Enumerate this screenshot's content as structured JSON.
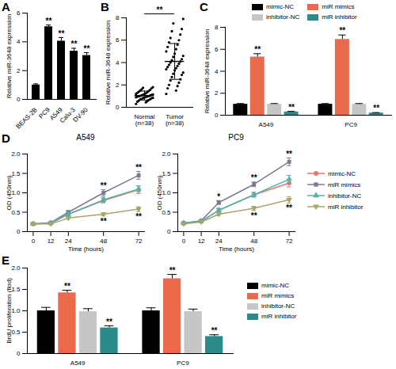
{
  "chart_data": [
    {
      "type": "bar",
      "title": "A",
      "ylabel": "Relative miR-3648 expression",
      "categories": [
        "BEAS-2B",
        "PC9",
        "A549",
        "Calu-3",
        "DV-90"
      ],
      "values": [
        1,
        5.05,
        4.05,
        3.35,
        3.05
      ],
      "errors": [
        0.08,
        0.12,
        0.25,
        0.2,
        0.2
      ],
      "significance": [
        null,
        "**",
        "**",
        "**",
        "**"
      ],
      "color": "#000000",
      "ylim": [
        0,
        6
      ],
      "yticks": [
        0,
        2,
        4,
        6
      ]
    },
    {
      "type": "scatter",
      "title": "B",
      "ylabel": "Relative miR-3648 expression",
      "categories": [
        "Normal\n(n=38)",
        "Tumor\n(n=38)"
      ],
      "groups": [
        [
          0.3,
          0.45,
          0.5,
          0.55,
          0.6,
          0.65,
          0.7,
          0.72,
          0.75,
          0.8,
          0.82,
          0.85,
          0.88,
          0.9,
          0.92,
          0.95,
          0.97,
          1.0,
          1.0,
          1.02,
          1.05,
          1.08,
          1.1,
          1.12,
          1.15,
          1.18,
          1.2,
          1.25,
          1.3,
          1.35,
          1.4,
          1.45,
          1.5,
          1.55,
          1.6,
          1.7,
          1.75,
          1.8
        ],
        [
          1.2,
          1.5,
          1.7,
          1.9,
          2.0,
          2.2,
          2.4,
          2.5,
          2.7,
          2.9,
          3.0,
          3.1,
          3.3,
          3.4,
          3.5,
          3.6,
          3.7,
          3.8,
          3.9,
          4.0,
          4.1,
          4.2,
          4.3,
          4.5,
          4.6,
          4.8,
          5.0,
          5.2,
          5.4,
          5.6,
          5.8,
          6.0,
          6.2,
          6.5,
          6.8,
          7.0,
          7.5,
          7.9
        ]
      ],
      "means": [
        1.05,
        4.1
      ],
      "errors": [
        0.4,
        1.6
      ],
      "significance": "**",
      "color": "#000000",
      "ylim": [
        0,
        8
      ],
      "yticks": [
        0,
        2,
        4,
        6,
        8
      ]
    },
    {
      "type": "bar",
      "title": "C",
      "ylabel": "Relative miR-3648 expression",
      "categories": [
        "A549",
        "PC9"
      ],
      "series": [
        {
          "name": "mimic-NC",
          "color": "#000000",
          "values": [
            1,
            1
          ],
          "errors": [
            0.06,
            0.06
          ],
          "significance": [
            null,
            null
          ]
        },
        {
          "name": "miR mimics",
          "color": "#EC6A4C",
          "values": [
            5.3,
            6.9
          ],
          "errors": [
            0.3,
            0.4
          ],
          "significance": [
            "**",
            "**"
          ]
        },
        {
          "name": "inhibitor-NC",
          "color": "#C6C6C6",
          "values": [
            1,
            1
          ],
          "errors": [
            0.06,
            0.06
          ],
          "significance": [
            null,
            null
          ]
        },
        {
          "name": "miR inhibitor",
          "color": "#2B8A8A",
          "values": [
            0.3,
            0.2
          ],
          "errors": [
            0.05,
            0.04
          ],
          "significance": [
            "**",
            "**"
          ]
        }
      ],
      "legend": "top",
      "ylim": [
        0,
        8
      ],
      "yticks": [
        0,
        2,
        4,
        6,
        8
      ]
    },
    {
      "type": "line",
      "title": "D",
      "subtitle": "A549",
      "xlabel": "Time (hours)",
      "ylabel": "OD (450nm)",
      "x": [
        0,
        12,
        24,
        48,
        72
      ],
      "series": [
        {
          "name": "mimic-NC",
          "color": "#E5786B",
          "marker": "circle",
          "values": [
            0.2,
            0.22,
            0.45,
            0.8,
            1.08
          ],
          "errors": [
            0.02,
            0.02,
            0.04,
            0.06,
            0.1
          ],
          "significance": [
            null,
            null,
            null,
            null,
            null
          ]
        },
        {
          "name": "miR mimics",
          "color": "#7D7A90",
          "marker": "square",
          "values": [
            0.2,
            0.23,
            0.5,
            1.0,
            1.45
          ],
          "errors": [
            0.02,
            0.02,
            0.04,
            0.08,
            0.1
          ],
          "significance": [
            null,
            null,
            null,
            "**",
            "**"
          ]
        },
        {
          "name": "inhibitor-NC",
          "color": "#4DB5AD",
          "marker": "triangle",
          "values": [
            0.2,
            0.22,
            0.45,
            0.82,
            1.1
          ],
          "errors": [
            0.02,
            0.02,
            0.04,
            0.06,
            0.08
          ],
          "significance": [
            null,
            null,
            null,
            null,
            null
          ]
        },
        {
          "name": "miR inhibitor",
          "color": "#A8A46A",
          "marker": "triangle-down",
          "values": [
            0.2,
            0.2,
            0.35,
            0.45,
            0.58
          ],
          "errors": [
            0.02,
            0.02,
            0.03,
            0.04,
            0.06
          ],
          "significance": [
            null,
            null,
            null,
            "**",
            "**"
          ]
        }
      ],
      "xlim": [
        -4,
        76
      ],
      "xticks": [
        0,
        12,
        24,
        48,
        72
      ],
      "ylim": [
        0,
        2
      ],
      "yticks": [
        0,
        0.5,
        {
          "value": 1,
          "label": "1.0"
        },
        1.5,
        {
          "value": 2,
          "label": "2.0"
        }
      ]
    },
    {
      "type": "line",
      "subtitle": "PC9",
      "xlabel": "Time (hours)",
      "ylabel": "OD (450nm)",
      "x": [
        0,
        12,
        24,
        48,
        72
      ],
      "series": [
        {
          "name": "mimic-NC",
          "color": "#E5786B",
          "marker": "circle",
          "values": [
            0.22,
            0.27,
            0.55,
            0.95,
            1.25
          ],
          "errors": [
            0.02,
            0.02,
            0.05,
            0.06,
            0.1
          ],
          "significance": [
            null,
            null,
            null,
            null,
            null
          ]
        },
        {
          "name": "miR mimics",
          "color": "#7D7A90",
          "marker": "square",
          "values": [
            0.22,
            0.28,
            0.75,
            1.22,
            1.8
          ],
          "errors": [
            0.02,
            0.02,
            0.05,
            0.06,
            0.1
          ],
          "significance": [
            null,
            null,
            "*",
            "**",
            "**"
          ]
        },
        {
          "name": "inhibitor-NC",
          "color": "#4DB5AD",
          "marker": "triangle",
          "values": [
            0.22,
            0.27,
            0.55,
            0.95,
            1.35
          ],
          "errors": [
            0.02,
            0.02,
            0.05,
            0.06,
            0.1
          ],
          "significance": [
            null,
            null,
            null,
            null,
            null
          ]
        },
        {
          "name": "miR inhibitor",
          "color": "#A8A46A",
          "marker": "triangle-down",
          "values": [
            0.2,
            0.25,
            0.45,
            0.6,
            0.82
          ],
          "errors": [
            0.02,
            0.02,
            0.04,
            0.05,
            0.08
          ],
          "significance": [
            null,
            null,
            null,
            "**",
            "**"
          ]
        }
      ],
      "legend": "right",
      "xlim": [
        -4,
        76
      ],
      "xticks": [
        0,
        12,
        24,
        48,
        72
      ],
      "ylim": [
        0,
        2
      ],
      "yticks": [
        0,
        0.5,
        {
          "value": 1,
          "label": "1.0"
        },
        1.5,
        {
          "value": 2,
          "label": "2.0"
        }
      ]
    },
    {
      "type": "bar",
      "title": "E",
      "ylabel": "BrdU proliferation (flod)",
      "categories": [
        "A549",
        "PC9"
      ],
      "series": [
        {
          "name": "mimic-NC",
          "color": "#000000",
          "values": [
            1,
            1
          ],
          "errors": [
            0.08,
            0.07
          ],
          "significance": [
            null,
            null
          ]
        },
        {
          "name": "miR mimics",
          "color": "#EC6A4C",
          "values": [
            1.42,
            1.75
          ],
          "errors": [
            0.06,
            0.1
          ],
          "significance": [
            "**",
            "**"
          ]
        },
        {
          "name": "inhibitor-NC",
          "color": "#C6C6C6",
          "values": [
            0.98,
            0.98
          ],
          "errors": [
            0.07,
            0.06
          ],
          "significance": [
            null,
            null
          ]
        },
        {
          "name": "miR inhibitor",
          "color": "#2B8A8A",
          "values": [
            0.6,
            0.4
          ],
          "errors": [
            0.05,
            0.04
          ],
          "significance": [
            "**",
            "**"
          ]
        }
      ],
      "legend": "right",
      "ylim": [
        0,
        2
      ],
      "yticks": [
        0,
        0.5,
        {
          "value": 1,
          "label": "1.0"
        },
        1.5,
        {
          "value": 2,
          "label": "2.0"
        }
      ]
    }
  ]
}
